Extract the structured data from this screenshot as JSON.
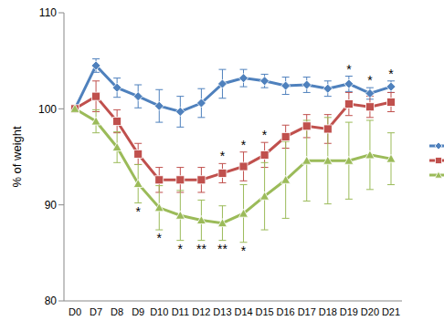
{
  "chart_data": {
    "type": "line",
    "y_label": "% of weight",
    "categories": [
      "D0",
      "D7",
      "D8",
      "D9",
      "D10",
      "D11",
      "D12",
      "D13",
      "D14",
      "D15",
      "D16",
      "D17",
      "D18",
      "D19",
      "D20",
      "D21"
    ],
    "ylim": [
      80,
      110
    ],
    "yticks": [
      80,
      90,
      100,
      110
    ],
    "grid": false,
    "legend": "right",
    "series": [
      {
        "color": "#4f81bd",
        "marker": "diamond",
        "values": [
          100,
          104.5,
          102.2,
          101.3,
          100.3,
          99.7,
          100.6,
          102.6,
          103.2,
          102.9,
          102.4,
          102.5,
          102.1,
          102.6,
          101.6,
          102.3
        ],
        "errors": [
          0,
          0.7,
          1.0,
          1.2,
          1.7,
          1.6,
          1.5,
          1.5,
          0.9,
          0.7,
          0.9,
          0.8,
          0.8,
          0.8,
          0.6,
          0.6
        ],
        "annotations": [
          null,
          null,
          null,
          null,
          null,
          null,
          null,
          null,
          null,
          null,
          null,
          null,
          null,
          "*",
          "*",
          "*"
        ]
      },
      {
        "color": "#c0504d",
        "marker": "square",
        "values": [
          100,
          101.3,
          98.7,
          95.3,
          92.6,
          92.6,
          92.6,
          93.3,
          94.0,
          95.2,
          97.1,
          98.2,
          97.9,
          100.5,
          100.2,
          100.7
        ],
        "errors": [
          0,
          1.6,
          1.2,
          1.1,
          1.3,
          1.3,
          1.3,
          1.0,
          1.5,
          1.3,
          1.2,
          1.2,
          1.5,
          1.2,
          1.1,
          1.0
        ],
        "annotations": [
          null,
          null,
          null,
          null,
          null,
          null,
          null,
          "*",
          "*",
          "*",
          null,
          null,
          null,
          null,
          null,
          null
        ]
      },
      {
        "color": "#9bbb59",
        "marker": "triangle",
        "values": [
          100,
          98.7,
          96.0,
          92.2,
          89.7,
          88.9,
          88.4,
          88.1,
          89.1,
          90.9,
          92.6,
          94.6,
          94.6,
          94.6,
          95.2,
          94.8
        ],
        "errors": [
          0,
          1.2,
          1.6,
          2.0,
          2.3,
          2.6,
          2.1,
          1.8,
          3.0,
          3.5,
          4.0,
          4.2,
          4.5,
          4.0,
          3.6,
          2.7
        ],
        "annotations": [
          null,
          null,
          null,
          "*",
          "*",
          "*",
          "**",
          "**",
          "*",
          null,
          null,
          null,
          null,
          null,
          null,
          null
        ]
      }
    ]
  }
}
